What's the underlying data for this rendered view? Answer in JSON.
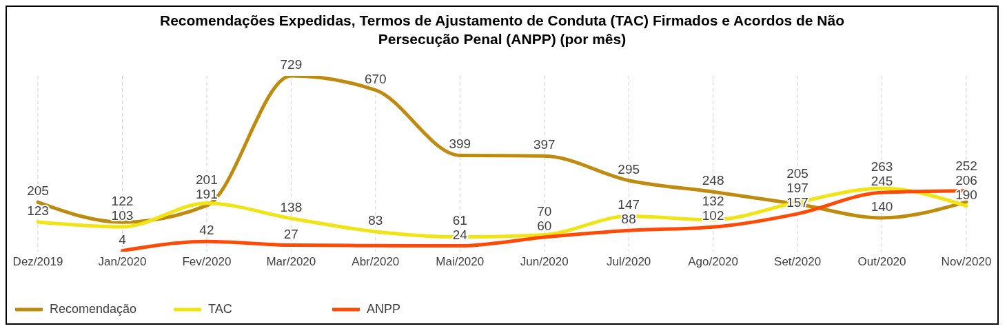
{
  "chart_data": {
    "type": "line",
    "title": "Recomendações Expedidas, Termos de Ajustamento de Conduta (TAC) Firmados e Acordos de Não Persecução Penal (ANPP) (por mês)",
    "categories": [
      "Dez/2019",
      "Jan/2020",
      "Fev/2020",
      "Mar/2020",
      "Abr/2020",
      "Mai/2020",
      "Jun/2020",
      "Jul/2020",
      "Ago/2020",
      "Set/2020",
      "Out/2020",
      "Nov/2020"
    ],
    "series": [
      {
        "name": "Recomendação",
        "color": "#bf8b0f",
        "values": [
          205,
          122,
          191,
          729,
          670,
          399,
          397,
          295,
          248,
          197,
          140,
          206
        ]
      },
      {
        "name": "TAC",
        "color": "#f0e412",
        "values": [
          123,
          103,
          201,
          138,
          83,
          61,
          70,
          147,
          132,
          205,
          263,
          190
        ]
      },
      {
        "name": "ANPP",
        "color": "#ff4a05",
        "values": [
          null,
          4,
          42,
          27,
          25,
          24,
          60,
          88,
          102,
          157,
          245,
          252
        ],
        "value_labels": [
          null,
          "4",
          "42",
          "27",
          null,
          "24",
          "60",
          "88",
          "102",
          "157",
          "245",
          "252"
        ]
      }
    ],
    "data_labels": true,
    "grid": "x",
    "legend": "bottom left",
    "marker": "none",
    "line_style": "solid"
  }
}
